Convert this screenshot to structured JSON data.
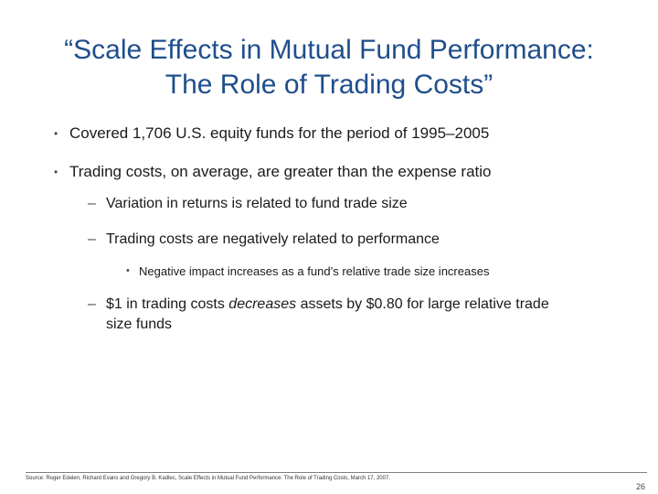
{
  "slide": {
    "title_line1": "“Scale Effects in Mutual Fund Performance:",
    "title_line2": "The Role of Trading Costs”",
    "bullets": [
      {
        "marker": "•",
        "text": "Covered 1,706 U.S. equity funds for the period of 1995–2005"
      },
      {
        "marker": "•",
        "text": "Trading costs, on average, are greater than the expense ratio"
      }
    ],
    "sub_bullets": [
      {
        "marker": "–",
        "text": "Variation in returns is related to fund trade size"
      },
      {
        "marker": "–",
        "text": "Trading costs are negatively related to performance"
      }
    ],
    "sub_sub_bullets": [
      {
        "marker": "•",
        "text": "Negative impact increases as a fund’s relative trade size increases"
      }
    ],
    "last_bullet": {
      "marker": "–",
      "text_before": "$1 in trading costs ",
      "text_emphasis": "decreases",
      "text_after_line1": " assets by $0.80 for large relative trade",
      "text_line2": "size funds"
    },
    "source": "Source: Roger Edelen, Richard Evans and Gregory B. Kadlec, Scale Effects in Mutual Fund Performance: The Role of Trading Costs, March 17, 2007.",
    "page_number": "26"
  }
}
